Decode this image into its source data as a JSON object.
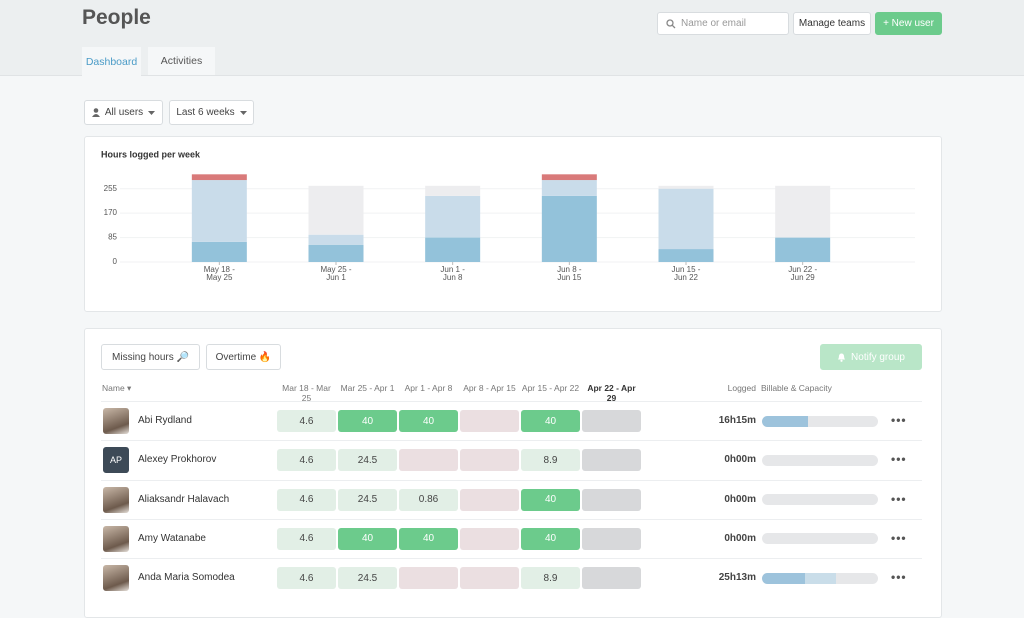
{
  "header": {
    "title": "People",
    "search_placeholder": "Name or email",
    "buttons": [
      "Manage teams",
      "+ New user"
    ],
    "tabs": [
      "Dashboard",
      "Activities"
    ]
  },
  "filters": [
    "All users",
    "Last 6 weeks"
  ],
  "chart_data": {
    "type": "bar",
    "stacked": true,
    "title": "Hours logged per week",
    "categories": [
      [
        "May 18 -",
        "May 25"
      ],
      [
        "May 25 -",
        "Jun 1"
      ],
      [
        "Jun 1 -",
        "Jun 8"
      ],
      [
        "Jun 8 -",
        "Jun 15"
      ],
      [
        "Jun 15 -",
        "Jun 22"
      ],
      [
        "Jun 22 -",
        "Jun 29"
      ]
    ],
    "series": [
      {
        "color": "#93c2da",
        "values": [
          70,
          60,
          85,
          230,
          45,
          85
        ]
      },
      {
        "color": "#c9dcea",
        "values": [
          215,
          35,
          145,
          55,
          210,
          0
        ]
      },
      {
        "color": "#d97a7a",
        "values": [
          20,
          0,
          0,
          20,
          0,
          0
        ]
      },
      {
        "color": "#ededef",
        "values": [
          0,
          170,
          35,
          0,
          10,
          180
        ]
      }
    ],
    "ylim": [
      0,
      320
    ],
    "yticks": [
      0,
      85,
      170,
      255
    ],
    "grid": true
  },
  "table": {
    "buttons": [
      "Missing hours 🔎",
      "Overtime 🔥",
      "Notify group"
    ],
    "columns": {
      "name": "Name",
      "weeks": [
        "Mar 18 - Mar 25",
        "Mar 25 - Apr 1",
        "Apr 1 - Apr 8",
        "Apr 8 - Apr 15",
        "Apr 15 - Apr 22",
        "Apr 22 - Apr 29"
      ],
      "logged": "Logged",
      "capacity": "Billable & Capacity"
    },
    "rows": [
      {
        "name": "Abi Rydland",
        "hours": [
          4.6,
          40,
          40,
          null,
          40,
          null
        ],
        "logged": "16h15m",
        "bar": [
          40,
          0
        ]
      },
      {
        "name": "Alexey Prokhorov",
        "initials": "AP",
        "hours": [
          4.6,
          24.5,
          null,
          null,
          8.9,
          null
        ],
        "logged": "0h00m",
        "bar": [
          0,
          0
        ]
      },
      {
        "name": "Aliaksandr Halavach",
        "hours": [
          4.6,
          24.5,
          0.86,
          null,
          40,
          null
        ],
        "logged": "0h00m",
        "bar": [
          0,
          0
        ]
      },
      {
        "name": "Amy Watanabe",
        "hours": [
          4.6,
          40,
          40,
          null,
          40,
          null
        ],
        "logged": "0h00m",
        "bar": [
          0,
          0
        ]
      },
      {
        "name": "Anda Maria Somodea",
        "hours": [
          4.6,
          24.5,
          null,
          null,
          8.9,
          null
        ],
        "logged": "25h13m",
        "bar": [
          37,
          27
        ]
      }
    ]
  }
}
